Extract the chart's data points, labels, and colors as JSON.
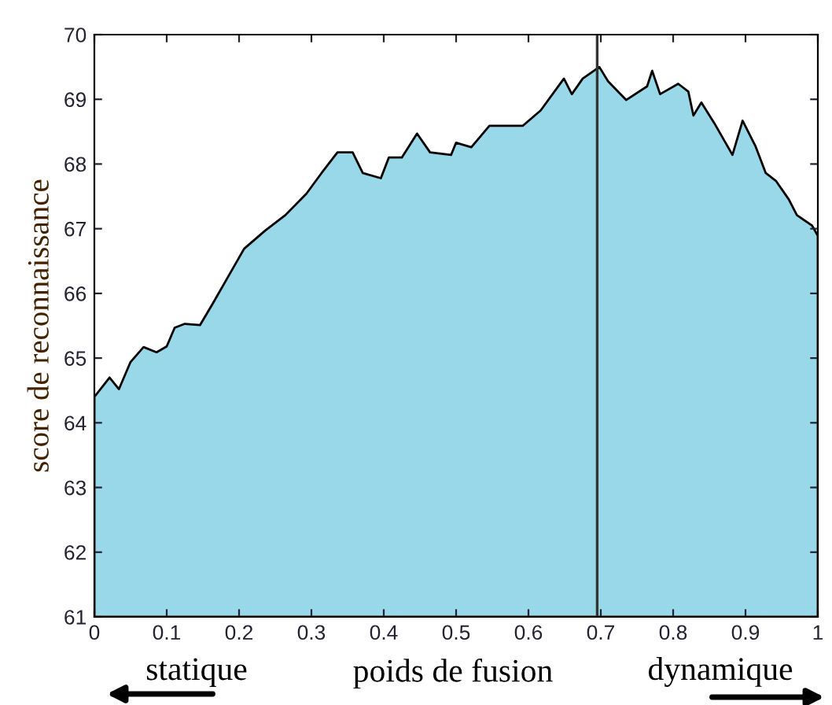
{
  "chart_data": {
    "type": "area",
    "xlabel": "poids de fusion",
    "ylabel": "score de reconnaissance",
    "annotations": [
      "statique",
      "dynamique"
    ],
    "x": [
      0,
      0.021,
      0.034,
      0.05,
      0.068,
      0.086,
      0.1,
      0.111,
      0.125,
      0.146,
      0.164,
      0.186,
      0.207,
      0.236,
      0.264,
      0.293,
      0.314,
      0.336,
      0.357,
      0.371,
      0.396,
      0.407,
      0.425,
      0.446,
      0.464,
      0.493,
      0.5,
      0.521,
      0.546,
      0.592,
      0.617,
      0.649,
      0.66,
      0.675,
      0.698,
      0.71,
      0.735,
      0.764,
      0.771,
      0.782,
      0.807,
      0.821,
      0.828,
      0.839,
      0.857,
      0.882,
      0.896,
      0.914,
      0.928,
      0.942,
      0.96,
      0.971,
      0.992,
      1.0
    ],
    "series": [
      {
        "color": "#99d8e8",
        "values": [
          64.4,
          64.7,
          64.52,
          64.94,
          65.17,
          65.09,
          65.18,
          65.47,
          65.53,
          65.51,
          65.85,
          66.28,
          66.69,
          66.97,
          67.21,
          67.54,
          67.86,
          68.18,
          68.18,
          67.86,
          67.78,
          68.1,
          68.1,
          68.47,
          68.18,
          68.14,
          68.33,
          68.26,
          68.59,
          68.59,
          68.83,
          69.32,
          69.08,
          69.32,
          69.5,
          69.28,
          68.99,
          69.2,
          69.44,
          69.08,
          69.24,
          69.12,
          68.75,
          68.95,
          68.63,
          68.14,
          68.67,
          68.27,
          67.86,
          67.74,
          67.45,
          67.21,
          67.05,
          66.89
        ]
      }
    ],
    "ref_lines": [
      {
        "axis": "x",
        "value": 0.695,
        "color": "#333333"
      }
    ],
    "xlim": [
      0,
      1
    ],
    "xticks": [
      0,
      0.1,
      0.2,
      0.3,
      0.4,
      0.5,
      0.6,
      0.7,
      0.8,
      0.9,
      1
    ],
    "ylim": [
      61,
      70
    ],
    "yticks": [
      61,
      62,
      63,
      64,
      65,
      66,
      67,
      68,
      69,
      70
    ],
    "grid": false,
    "legend": false,
    "line_style": "solid"
  }
}
